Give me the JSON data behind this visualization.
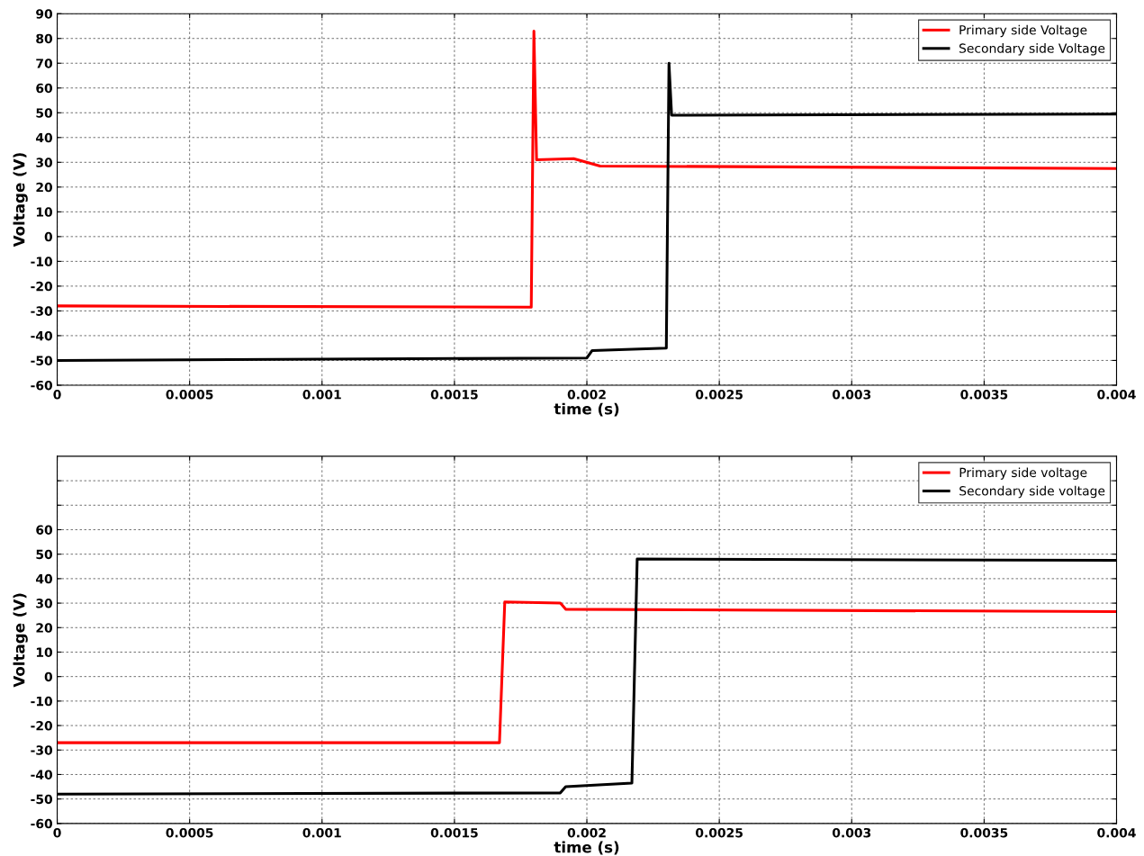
{
  "chart_data": [
    {
      "type": "line",
      "xlabel": "time (s)",
      "ylabel": "Voltage (V)",
      "xlim": [
        0,
        0.004
      ],
      "ylim": [
        -60,
        90
      ],
      "xticks": [
        0,
        0.0005,
        0.001,
        0.0015,
        0.002,
        0.0025,
        0.003,
        0.0035,
        0.004
      ],
      "yticks": [
        -60,
        -50,
        -40,
        -30,
        -20,
        -10,
        0,
        10,
        20,
        30,
        40,
        50,
        60,
        70,
        80,
        90
      ],
      "grid": true,
      "legend": "top right",
      "marker": "none",
      "line_style": "solid",
      "series": [
        {
          "name": "Primary side Voltage",
          "color": "#ff0000",
          "x": [
            0,
            0.00179,
            0.0018,
            0.00181,
            0.00195,
            0.00205,
            0.004
          ],
          "values": [
            -28,
            -28.5,
            83,
            31,
            31.5,
            28.5,
            27.5
          ]
        },
        {
          "name": "Secondary side Voltage",
          "color": "#000000",
          "x": [
            0,
            0.002,
            0.00202,
            0.0023,
            0.00231,
            0.00232,
            0.004
          ],
          "values": [
            -50,
            -49,
            -46,
            -45,
            70,
            49,
            49.5
          ]
        }
      ]
    },
    {
      "type": "line",
      "xlabel": "time (s)",
      "ylabel": "Voltage (V)",
      "xlim": [
        0,
        0.004
      ],
      "ylim": [
        -60,
        90
      ],
      "xticks": [
        0,
        0.0005,
        0.001,
        0.0015,
        0.002,
        0.0025,
        0.003,
        0.0035,
        0.004
      ],
      "yticks": [
        -60,
        -50,
        -40,
        -30,
        -20,
        -10,
        0,
        10,
        20,
        30,
        40,
        50,
        60,
        {
          "value": 70,
          "label": null
        },
        {
          "value": 80,
          "label": null
        }
      ],
      "grid": true,
      "legend": "top right",
      "marker": "none",
      "line_style": "solid",
      "series": [
        {
          "name": "Primary side voltage",
          "color": "#ff0000",
          "x": [
            0,
            0.00167,
            0.00169,
            0.0019,
            0.00192,
            0.004
          ],
          "values": [
            -27,
            -27,
            30.5,
            30,
            27.5,
            26.5
          ]
        },
        {
          "name": "Secondary side voltage",
          "color": "#000000",
          "x": [
            0,
            0.0019,
            0.00192,
            0.00217,
            0.00219,
            0.004
          ],
          "values": [
            -48,
            -47.5,
            -45,
            -43.5,
            48,
            47.5
          ]
        }
      ]
    }
  ]
}
